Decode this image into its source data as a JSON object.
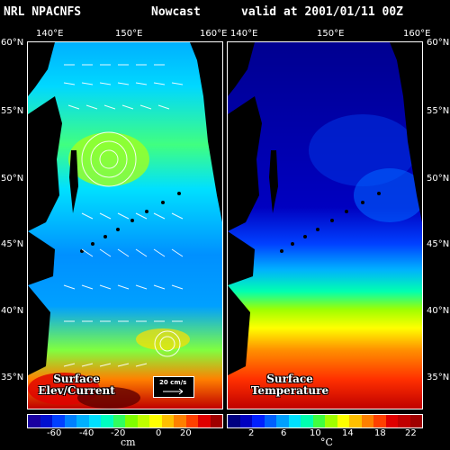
{
  "header": {
    "source": "NRL NPACNFS",
    "run": "Nowcast",
    "valid": "valid at 2001/01/11 00Z"
  },
  "left_panel": {
    "lon_ticks": [
      "140°E",
      "150°E",
      "160°E"
    ],
    "lat_ticks": [
      "60°N",
      "55°N",
      "50°N",
      "45°N",
      "40°N",
      "35°N"
    ],
    "label_line1": "Surface",
    "label_line2": "Elev/Current",
    "scale_label": "20 cm/s",
    "colorbar_ticks": [
      "-60",
      "-40",
      "-20",
      "0",
      "20"
    ],
    "colorbar_unit": "cm",
    "colors": [
      "#1a00a0",
      "#0010d0",
      "#0040ff",
      "#0080ff",
      "#00b0ff",
      "#00e0ff",
      "#00ffc0",
      "#30ff60",
      "#80ff00",
      "#c0ff00",
      "#ffff00",
      "#ffc000",
      "#ff8000",
      "#ff4000",
      "#e00000",
      "#a00000"
    ]
  },
  "right_panel": {
    "lon_ticks": [
      "140°E",
      "150°E",
      "160°E"
    ],
    "lat_ticks": [
      "45°N",
      "40°N",
      "35°N"
    ],
    "label_line1": "Surface",
    "label_line2": "Temperature",
    "colorbar_ticks": [
      "2",
      "6",
      "10",
      "14",
      "18",
      "22"
    ],
    "colorbar_unit": "°C",
    "colors": [
      "#000080",
      "#0000c0",
      "#0020ff",
      "#0060ff",
      "#00a0ff",
      "#00e0ff",
      "#00ffb0",
      "#40ff40",
      "#a0ff00",
      "#ffff00",
      "#ffc000",
      "#ff8000",
      "#ff4000",
      "#e00000",
      "#c00000",
      "#a00000"
    ]
  }
}
